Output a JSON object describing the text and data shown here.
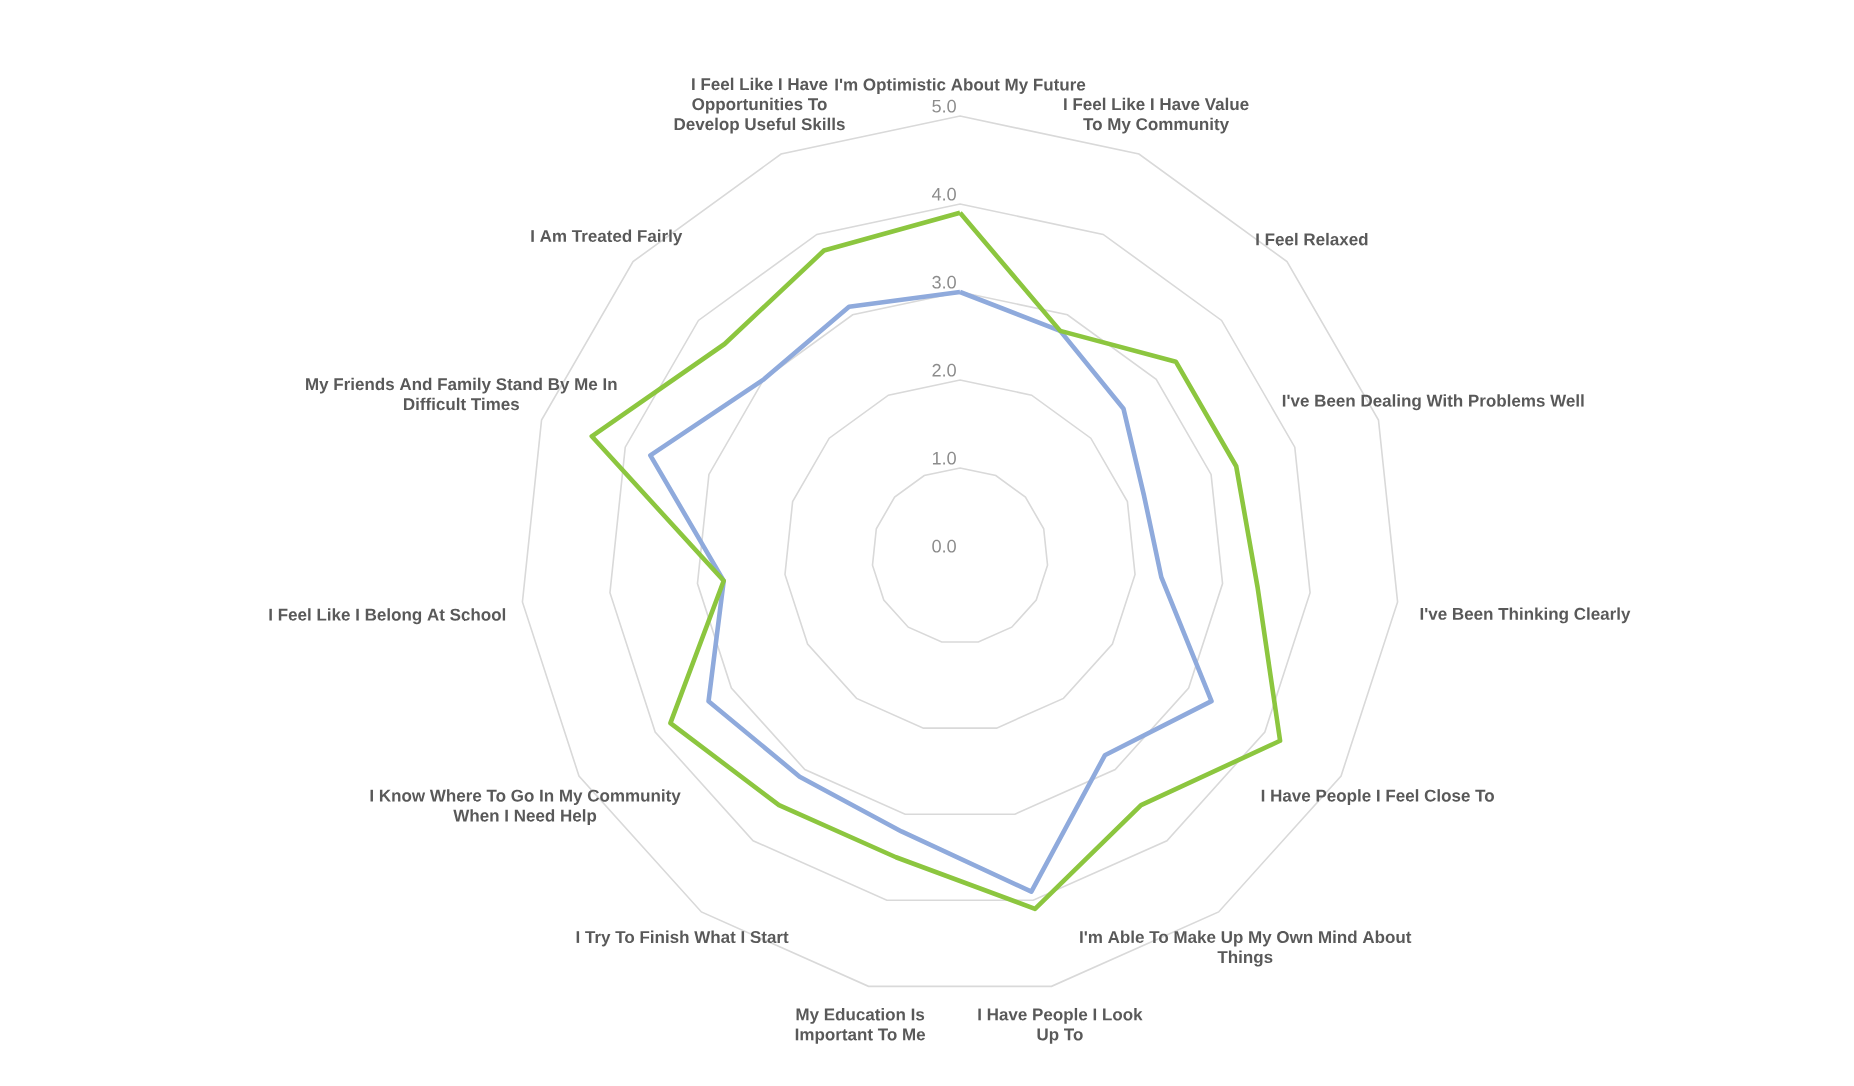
{
  "chart_data": {
    "type": "radar",
    "categories": [
      "I'm Optimistic About My Future",
      "I Feel Like I Have Value To My Community",
      "I Feel Relaxed",
      "I've Been Dealing With Problems Well",
      "I've Been Thinking Clearly",
      "I Have People I Feel Close To",
      "I'm Able To Make Up My Own Mind About Things",
      "I Have People I Look Up To",
      "My Education Is Important To Me",
      "I Try To Finish What I Start",
      "I Know Where To Go In My Community When I Need Help",
      "I Feel Like I Belong At School",
      "My Friends And Family Stand By Me In Difficult Times",
      "I Am Treated Fairly",
      "I Feel Like I Have Opportunities To Develop Useful Skills"
    ],
    "series": [
      {
        "color": "#8faadc",
        "values": [
          3.0,
          2.8,
          2.5,
          2.2,
          2.3,
          3.3,
          2.8,
          3.9,
          3.2,
          3.1,
          3.3,
          2.7,
          3.7,
          3.0,
          3.1
        ]
      },
      {
        "color": "#8cc63f",
        "values": [
          3.9,
          2.8,
          3.3,
          3.3,
          3.4,
          4.2,
          3.5,
          4.1,
          3.5,
          3.5,
          3.8,
          2.7,
          4.4,
          3.6,
          3.8
        ]
      }
    ],
    "ylim": [
      0,
      5
    ],
    "yticks": [
      {
        "value": 0,
        "label": "0.0"
      },
      {
        "value": 1,
        "label": "1.0"
      },
      {
        "value": 2,
        "label": "2.0"
      },
      {
        "value": 3,
        "label": "3.0"
      },
      {
        "value": 4,
        "label": "4.0"
      },
      {
        "value": 5,
        "label": "5.0"
      }
    ],
    "grid": true
  }
}
